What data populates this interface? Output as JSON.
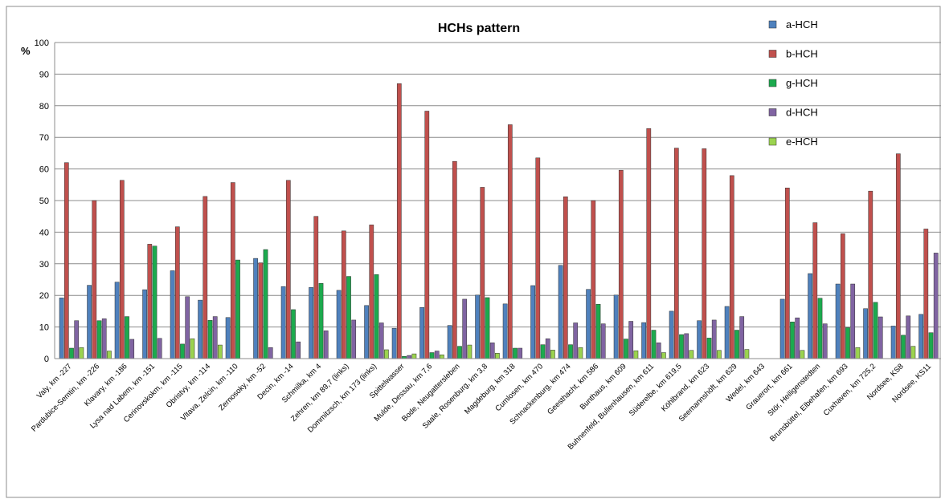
{
  "chart_data": {
    "type": "bar",
    "title": "HCHs pattern",
    "ylabel": "%",
    "xlabel": "",
    "ylim": [
      0,
      100
    ],
    "yticks": [
      0,
      10,
      20,
      30,
      40,
      50,
      60,
      70,
      80,
      90,
      100
    ],
    "grid": true,
    "legend_position": "top-right",
    "categories": [
      "Valy, km -227",
      "Pardubice-Semtin, km -226",
      "Klavary, km -186",
      "Lysa nad Labem, km -151",
      "Cerinovskokm, km -115",
      "Obristvy, km -114",
      "Vltava, Zelcin, km -110",
      "Zernosoky, km -52",
      "Decin, km -14",
      "Schmilka, km 4",
      "Zehren, km 89,7 (links)",
      "Dommitzsch, km 173 (links)",
      "Spittelwasser",
      "Mulde, Dessau, km 7,6",
      "Bode, Neugattersleben",
      "Saale, Rosenburg, km 3,8",
      "Magdeburg, km 318",
      "Cumlosen, km 470",
      "Schnackenburg, km 474",
      "Geesthacht, km 586",
      "Bunthaus, km 609",
      "Buhnenfeld, Bullenhausen, km 611",
      "Süderelbe, km 619,5",
      "Köhlbrand, km 623",
      "Seemannshöft, km 629",
      "Wedel, km 643",
      "Grauerort, km 661",
      "Stör, Heiligenstedten",
      "Brunsbüttel, Elbehafen, km 693",
      "Cuxhaven, km 725,2",
      "Nordsee, KS8",
      "Nordsee, KS11"
    ],
    "series": [
      {
        "name": "a-HCH",
        "color": "#4F81BD",
        "values": [
          19.2,
          23.2,
          24.2,
          21.8,
          27.8,
          18.5,
          13.0,
          31.7,
          22.8,
          22.5,
          21.6,
          16.8,
          9.6,
          16.2,
          10.5,
          20.1,
          17.3,
          23.1,
          29.5,
          21.9,
          20.1,
          11.4,
          15.0,
          12.0,
          16.5,
          0,
          18.8,
          26.9,
          23.6,
          15.8,
          10.3,
          14.0
        ]
      },
      {
        "name": "b-HCH",
        "color": "#C0504D",
        "values": [
          62.0,
          50.0,
          56.4,
          36.2,
          41.7,
          51.3,
          55.7,
          30.3,
          56.4,
          45.0,
          40.4,
          42.3,
          87.0,
          78.3,
          62.4,
          54.2,
          74.0,
          63.5,
          51.2,
          50.0,
          59.6,
          72.8,
          66.6,
          66.4,
          57.9,
          0,
          54.0,
          43.0,
          39.5,
          53.0,
          64.8,
          41.0
        ]
      },
      {
        "name": "g-HCH",
        "color": "#1CAA4E",
        "values": [
          3.3,
          12.0,
          13.3,
          35.6,
          4.6,
          12.1,
          31.2,
          34.5,
          15.5,
          23.8,
          26.0,
          26.6,
          0.7,
          1.9,
          3.9,
          19.3,
          3.3,
          4.4,
          4.4,
          17.2,
          6.2,
          9.0,
          7.6,
          6.5,
          9.0,
          0,
          11.6,
          19.1,
          9.8,
          17.8,
          7.4,
          8.2
        ]
      },
      {
        "name": "d-HCH",
        "color": "#8064A2",
        "values": [
          12.0,
          12.6,
          6.1,
          6.4,
          19.6,
          13.3,
          0,
          3.5,
          5.3,
          8.8,
          12.2,
          11.3,
          1.0,
          2.4,
          18.8,
          5.0,
          3.3,
          6.3,
          11.3,
          11.0,
          11.8,
          5.0,
          7.9,
          12.2,
          13.3,
          0,
          12.9,
          11.0,
          23.6,
          13.2,
          13.5,
          33.4
        ]
      },
      {
        "name": "e-HCH",
        "color": "#9BD34F",
        "values": [
          3.5,
          2.4,
          0,
          0,
          6.3,
          4.3,
          0,
          0,
          0,
          0,
          0,
          2.8,
          1.5,
          1.2,
          4.3,
          1.7,
          0,
          2.7,
          3.5,
          0,
          2.5,
          1.9,
          2.6,
          2.6,
          2.9,
          0,
          2.6,
          0,
          3.5,
          0,
          3.9,
          0
        ]
      }
    ]
  }
}
